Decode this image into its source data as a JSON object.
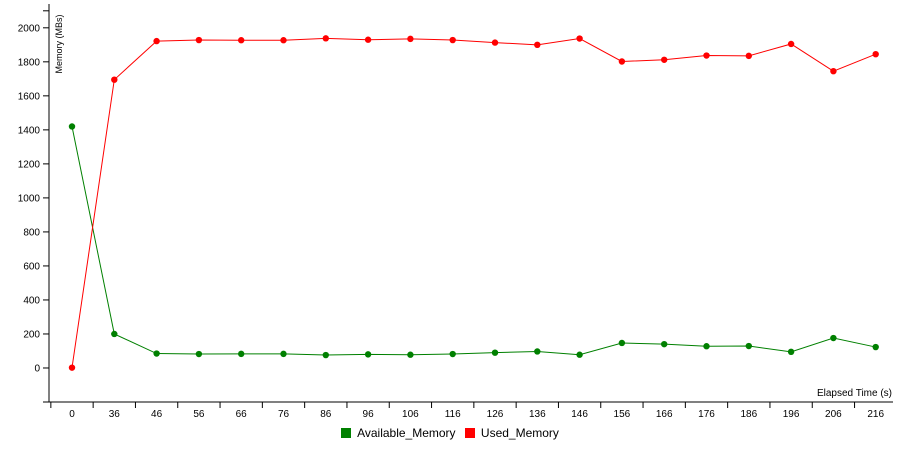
{
  "chart_data": {
    "type": "line",
    "xlabel": "Elapsed Time (s)",
    "ylabel": "Memory (MBs)",
    "categories": [
      "0",
      "36",
      "46",
      "56",
      "66",
      "76",
      "86",
      "96",
      "106",
      "116",
      "126",
      "136",
      "146",
      "156",
      "166",
      "176",
      "186",
      "196",
      "206",
      "216"
    ],
    "y_ticks": [
      0,
      200,
      400,
      600,
      800,
      1000,
      1200,
      1400,
      1600,
      1800,
      2000
    ],
    "ylim": [
      -200,
      2140
    ],
    "grid": false,
    "legend_position": "bottom",
    "series": [
      {
        "name": "Available_Memory",
        "color": "#008000",
        "values": [
          1420,
          200,
          85,
          82,
          83,
          83,
          76,
          80,
          78,
          82,
          90,
          97,
          78,
          147,
          140,
          128,
          129,
          95,
          176,
          123
        ]
      },
      {
        "name": "Used_Memory",
        "color": "#ff0000",
        "values": [
          2,
          1695,
          1922,
          1928,
          1927,
          1927,
          1938,
          1930,
          1935,
          1928,
          1913,
          1900,
          1937,
          1802,
          1812,
          1837,
          1835,
          1905,
          1745,
          1845
        ]
      }
    ]
  }
}
